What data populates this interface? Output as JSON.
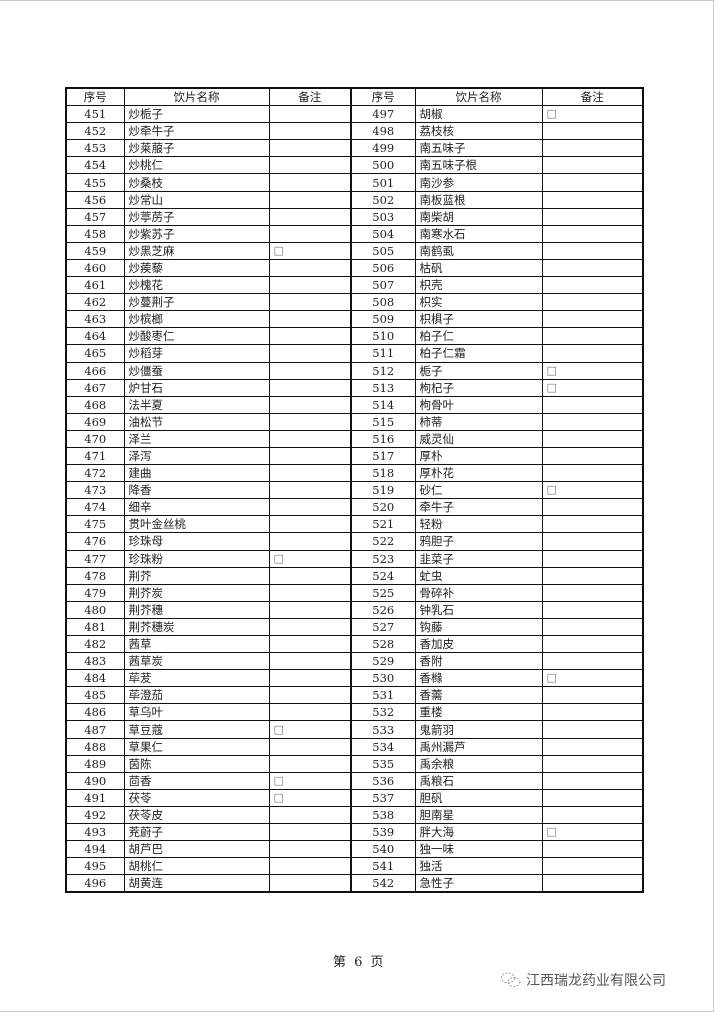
{
  "table": {
    "headers": [
      "序号",
      "饮片名称",
      "备注",
      "序号",
      "饮片名称",
      "备注"
    ],
    "left": [
      [
        "451",
        "炒栀子",
        ""
      ],
      [
        "452",
        "炒牵牛子",
        ""
      ],
      [
        "453",
        "炒莱菔子",
        ""
      ],
      [
        "454",
        "炒桃仁",
        ""
      ],
      [
        "455",
        "炒桑枝",
        ""
      ],
      [
        "456",
        "炒常山",
        ""
      ],
      [
        "457",
        "炒葶苈子",
        ""
      ],
      [
        "458",
        "炒紫苏子",
        ""
      ],
      [
        "459",
        "炒黑芝麻",
        "□"
      ],
      [
        "460",
        "炒蒺藜",
        ""
      ],
      [
        "461",
        "炒槐花",
        ""
      ],
      [
        "462",
        "炒蔓荆子",
        ""
      ],
      [
        "463",
        "炒槟榔",
        ""
      ],
      [
        "464",
        "炒酸枣仁",
        ""
      ],
      [
        "465",
        "炒稻芽",
        ""
      ],
      [
        "466",
        "炒僵蚕",
        ""
      ],
      [
        "467",
        "炉甘石",
        ""
      ],
      [
        "468",
        "法半夏",
        ""
      ],
      [
        "469",
        "油松节",
        ""
      ],
      [
        "470",
        "泽兰",
        ""
      ],
      [
        "471",
        "泽泻",
        ""
      ],
      [
        "472",
        "建曲",
        ""
      ],
      [
        "473",
        "降香",
        ""
      ],
      [
        "474",
        "细辛",
        ""
      ],
      [
        "475",
        "贯叶金丝桃",
        ""
      ],
      [
        "476",
        "珍珠母",
        ""
      ],
      [
        "477",
        "珍珠粉",
        "□"
      ],
      [
        "478",
        "荆芥",
        ""
      ],
      [
        "479",
        "荆芥炭",
        ""
      ],
      [
        "480",
        "荆芥穗",
        ""
      ],
      [
        "481",
        "荆芥穗炭",
        ""
      ],
      [
        "482",
        "茜草",
        ""
      ],
      [
        "483",
        "茜草炭",
        ""
      ],
      [
        "484",
        "荜茇",
        ""
      ],
      [
        "485",
        "荜澄茄",
        ""
      ],
      [
        "486",
        "草乌叶",
        ""
      ],
      [
        "487",
        "草豆蔻",
        "□"
      ],
      [
        "488",
        "草果仁",
        ""
      ],
      [
        "489",
        "茵陈",
        ""
      ],
      [
        "490",
        "茴香",
        "□"
      ],
      [
        "491",
        "茯苓",
        "□"
      ],
      [
        "492",
        "茯苓皮",
        ""
      ],
      [
        "493",
        "茺蔚子",
        ""
      ],
      [
        "494",
        "胡芦巴",
        ""
      ],
      [
        "495",
        "胡桃仁",
        ""
      ],
      [
        "496",
        "胡黄连",
        ""
      ]
    ],
    "right": [
      [
        "497",
        "胡椒",
        "□"
      ],
      [
        "498",
        "荔枝核",
        ""
      ],
      [
        "499",
        "南五味子",
        ""
      ],
      [
        "500",
        "南五味子根",
        ""
      ],
      [
        "501",
        "南沙参",
        ""
      ],
      [
        "502",
        "南板蓝根",
        ""
      ],
      [
        "503",
        "南柴胡",
        ""
      ],
      [
        "504",
        "南寒水石",
        ""
      ],
      [
        "505",
        "南鹤虱",
        ""
      ],
      [
        "506",
        "枯矾",
        ""
      ],
      [
        "507",
        "枳壳",
        ""
      ],
      [
        "508",
        "枳实",
        ""
      ],
      [
        "509",
        "枳椇子",
        ""
      ],
      [
        "510",
        "柏子仁",
        ""
      ],
      [
        "511",
        "柏子仁霜",
        ""
      ],
      [
        "512",
        "栀子",
        "□"
      ],
      [
        "513",
        "枸杞子",
        "□"
      ],
      [
        "514",
        "枸骨叶",
        ""
      ],
      [
        "515",
        "柿蒂",
        ""
      ],
      [
        "516",
        "威灵仙",
        ""
      ],
      [
        "517",
        "厚朴",
        ""
      ],
      [
        "518",
        "厚朴花",
        ""
      ],
      [
        "519",
        "砂仁",
        "□"
      ],
      [
        "520",
        "牵牛子",
        ""
      ],
      [
        "521",
        "轻粉",
        ""
      ],
      [
        "522",
        "鸦胆子",
        ""
      ],
      [
        "523",
        "韭菜子",
        ""
      ],
      [
        "524",
        "虻虫",
        ""
      ],
      [
        "525",
        "骨碎补",
        ""
      ],
      [
        "526",
        "钟乳石",
        ""
      ],
      [
        "527",
        "钩藤",
        ""
      ],
      [
        "528",
        "香加皮",
        ""
      ],
      [
        "529",
        "香附",
        ""
      ],
      [
        "530",
        "香橼",
        "□"
      ],
      [
        "531",
        "香薷",
        ""
      ],
      [
        "532",
        "重楼",
        ""
      ],
      [
        "533",
        "鬼箭羽",
        ""
      ],
      [
        "534",
        "禹州漏芦",
        ""
      ],
      [
        "535",
        "禹余粮",
        ""
      ],
      [
        "536",
        "禹粮石",
        ""
      ],
      [
        "537",
        "胆矾",
        ""
      ],
      [
        "538",
        "胆南星",
        ""
      ],
      [
        "539",
        "胖大海",
        "□"
      ],
      [
        "540",
        "独一味",
        ""
      ],
      [
        "541",
        "独活",
        ""
      ],
      [
        "542",
        "急性子",
        ""
      ]
    ]
  },
  "footer": {
    "page_label": "第 6 页",
    "watermark_text": "江西瑞龙药业有限公司",
    "watermark_icon": "wechat-icon"
  }
}
